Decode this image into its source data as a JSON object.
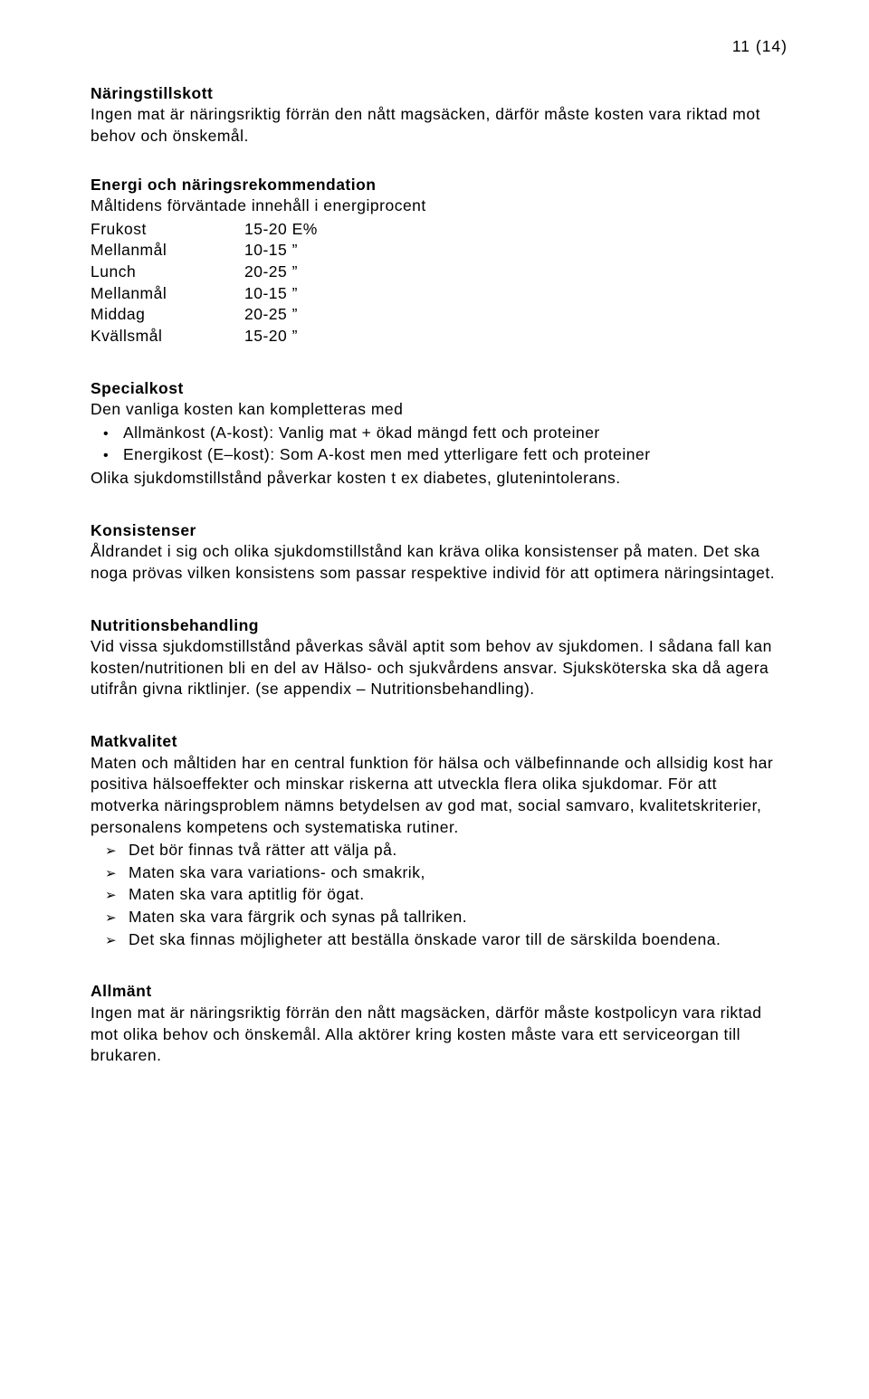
{
  "page_number": "11 (14)",
  "s1": {
    "heading": "Näringstillskott",
    "body": "Ingen mat är näringsriktig förrän den nått magsäcken, därför måste kosten vara riktad mot behov och önskemål."
  },
  "s2": {
    "heading": "Energi och näringsrekommendation",
    "intro": "Måltidens förväntade innehåll i energiprocent",
    "rows": [
      {
        "label": "Frukost",
        "value": "15-20 E%"
      },
      {
        "label": "Mellanmål",
        "value": "10-15 ”"
      },
      {
        "label": "Lunch",
        "value": "20-25 ”"
      },
      {
        "label": "Mellanmål",
        "value": "10-15 ”"
      },
      {
        "label": "Middag",
        "value": "20-25 ”"
      },
      {
        "label": "Kvällsmål",
        "value": "15-20 ”"
      }
    ]
  },
  "s3": {
    "heading": "Specialkost",
    "intro": "Den vanliga kosten kan kompletteras med",
    "bullets": [
      "Allmänkost (A-kost): Vanlig mat + ökad mängd fett och proteiner",
      "Energikost (E–kost): Som A-kost men med ytterligare fett och proteiner"
    ],
    "after": "Olika sjukdomstillstånd påverkar kosten t ex diabetes, glutenintolerans."
  },
  "s4": {
    "heading": "Konsistenser",
    "body": "Åldrandet i sig och olika sjukdomstillstånd kan kräva olika konsistenser på maten. Det ska noga prövas vilken konsistens som passar respektive individ för att optimera näringsintaget."
  },
  "s5": {
    "heading": "Nutritionsbehandling",
    "body": "Vid vissa sjukdomstillstånd påverkas såväl aptit som behov av sjukdomen. I sådana fall kan kosten/nutritionen bli en del av Hälso- och sjukvårdens ansvar. Sjuksköterska ska då agera utifrån givna riktlinjer. (se appendix – Nutritionsbehandling)."
  },
  "s6": {
    "heading": "Matkvalitet",
    "body": "Maten och måltiden har en central funktion för hälsa och välbefinnande och allsidig kost har positiva hälsoeffekter och minskar riskerna att utveckla flera olika sjukdomar. För att motverka näringsproblem nämns betydelsen av god mat, social samvaro, kvalitetskriterier, personalens kompetens och systematiska rutiner.",
    "arrows": [
      "Det bör finnas två rätter att välja på.",
      "Maten ska vara variations- och smakrik,",
      "Maten ska vara aptitlig för ögat.",
      "Maten ska vara färgrik och synas på tallriken.",
      "Det ska finnas möjligheter att beställa önskade varor till de särskilda boendena."
    ]
  },
  "s7": {
    "heading": "Allmänt",
    "body": "Ingen mat är näringsriktig förrän den nått magsäcken, därför måste kostpolicyn vara riktad mot olika behov och önskemål. Alla aktörer kring kosten måste vara ett serviceorgan till brukaren."
  }
}
